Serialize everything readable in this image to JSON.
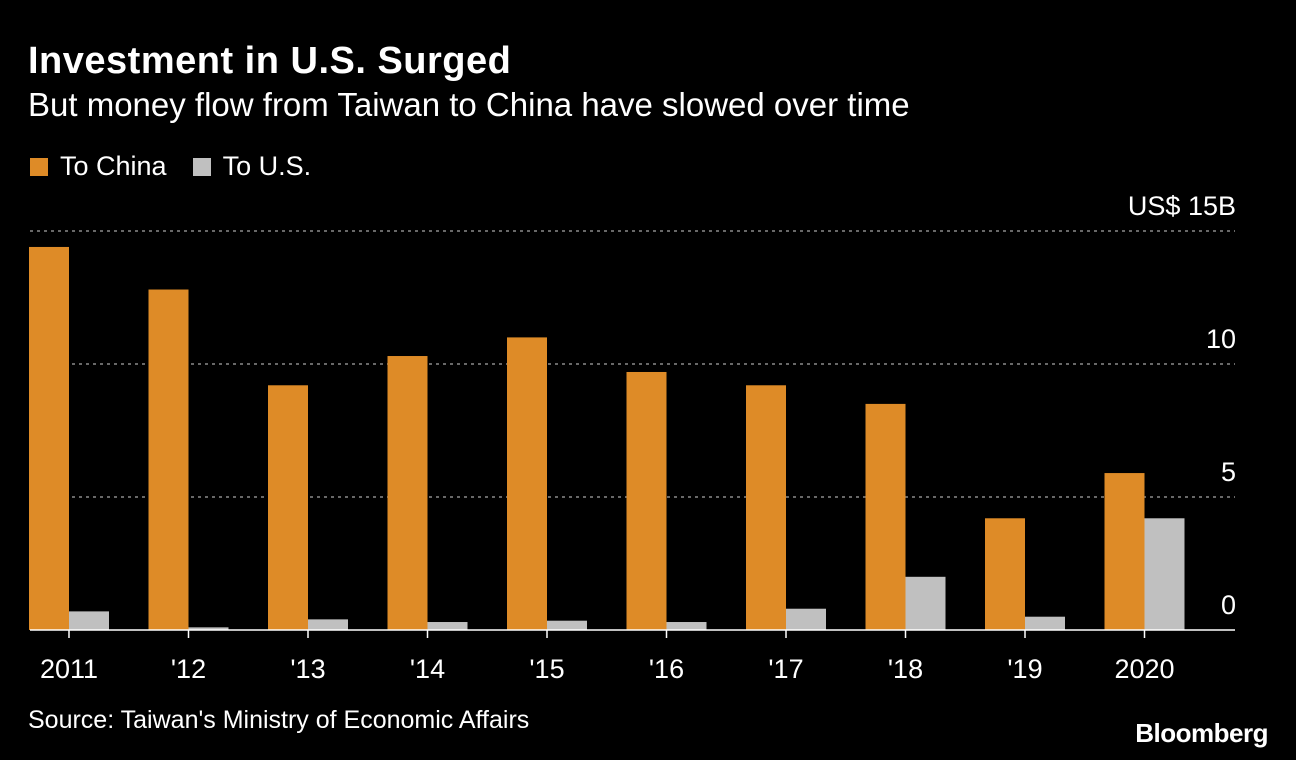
{
  "chart_data": {
    "type": "bar",
    "title": "Investment in U.S. Surged",
    "subtitle": "But money flow from Taiwan to China have slowed over time",
    "categories": [
      "2011",
      "'12",
      "'13",
      "'14",
      "'15",
      "'16",
      "'17",
      "'18",
      "'19",
      "2020"
    ],
    "series": [
      {
        "name": "To China",
        "color": "#de8b27",
        "values": [
          14.4,
          12.8,
          9.2,
          10.3,
          11.0,
          9.7,
          9.2,
          8.5,
          4.2,
          5.9
        ]
      },
      {
        "name": "To U.S.",
        "color": "#c0c0c0",
        "values": [
          0.7,
          0.1,
          0.4,
          0.3,
          0.35,
          0.3,
          0.8,
          2.0,
          0.5,
          4.2
        ]
      }
    ],
    "ylim": [
      0,
      15
    ],
    "yticks": [
      0,
      5,
      10,
      15
    ],
    "ytick_labels": [
      "0",
      "5",
      "10",
      "US$ 15B"
    ],
    "xlabel": "",
    "ylabel": "",
    "grid": true,
    "legend_position": "top-left"
  },
  "source": "Source: Taiwan's Ministry of Economic Affairs",
  "logo": "Bloomberg"
}
